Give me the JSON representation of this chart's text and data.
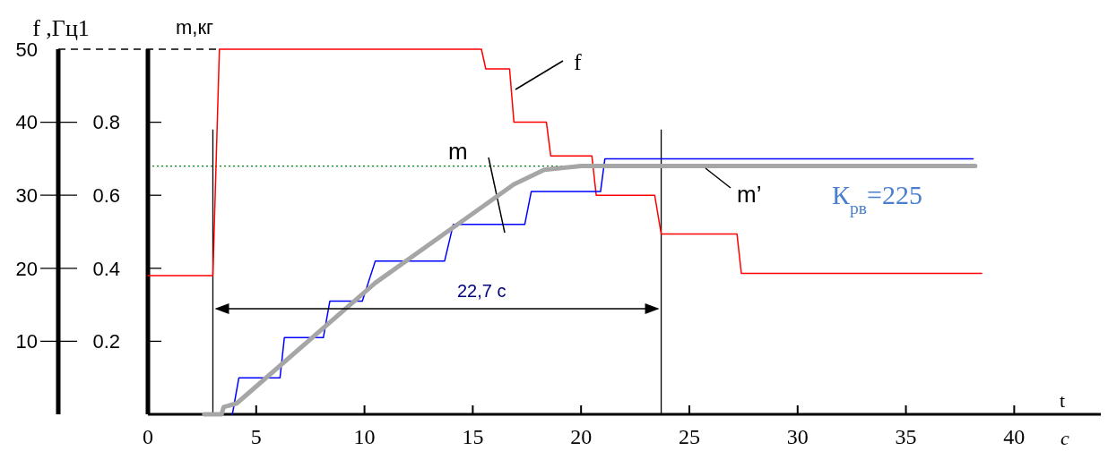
{
  "chart_data": {
    "type": "line",
    "xlabel": "t",
    "ylabel": "f ,Гц1",
    "y2label": "m,кг",
    "xlim": [
      0,
      44
    ],
    "xticks": [
      0,
      5,
      10,
      15,
      20,
      25,
      30,
      35,
      40
    ],
    "ylim": [
      0,
      50
    ],
    "yticks": [
      10,
      20,
      30,
      40,
      50
    ],
    "y2lim": [
      0,
      1
    ],
    "y2ticks": [
      0.2,
      0.4,
      0.6,
      0.8
    ],
    "grid": false,
    "legend": false,
    "marker": "none",
    "line_style": "solid",
    "series": [
      {
        "name": "f",
        "color": "#ff0000",
        "x": [
          0,
          3.0,
          3.3,
          15.4,
          15.6,
          16.7,
          16.9,
          18.4,
          18.6,
          20.5,
          20.7,
          23.4,
          23.7,
          27.2,
          27.4,
          38.5
        ],
        "values": [
          19,
          19,
          50,
          50,
          47.3,
          47.3,
          40,
          40,
          35.4,
          35.4,
          30,
          30,
          24.7,
          24.7,
          19.3,
          19.3
        ]
      },
      {
        "name": "m",
        "color": "#0000ff",
        "axis": "y2",
        "x": [
          3.9,
          4.2,
          6.1,
          6.3,
          8.1,
          8.4,
          9.9,
          10.5,
          13.7,
          14.1,
          17.4,
          17.7,
          20.9,
          21.1,
          38.1
        ],
        "values": [
          0,
          0.1,
          0.1,
          0.21,
          0.21,
          0.31,
          0.31,
          0.42,
          0.42,
          0.52,
          0.52,
          0.61,
          0.61,
          0.7,
          0.7
        ]
      },
      {
        "name": "m’",
        "color": "#a6a6a6",
        "axis": "y2",
        "x": [
          2.6,
          3.4,
          3.5,
          4.1,
          10.5,
          16.9,
          18.3,
          20.0,
          38.2
        ],
        "values": [
          0,
          0,
          0.02,
          0.03,
          0.36,
          0.63,
          0.67,
          0.68,
          0.68
        ]
      }
    ],
    "ref_lines": [
      {
        "axis": "x",
        "value": 3.0,
        "color": "#000000"
      },
      {
        "axis": "x",
        "value": 23.7,
        "color": "#000000"
      },
      {
        "axis": "y2",
        "value": 0.68,
        "color": "#008000",
        "line_style": "dotted"
      }
    ],
    "annotations": [
      "22,7 с",
      "К$_{рв}$=225",
      "c"
    ]
  }
}
